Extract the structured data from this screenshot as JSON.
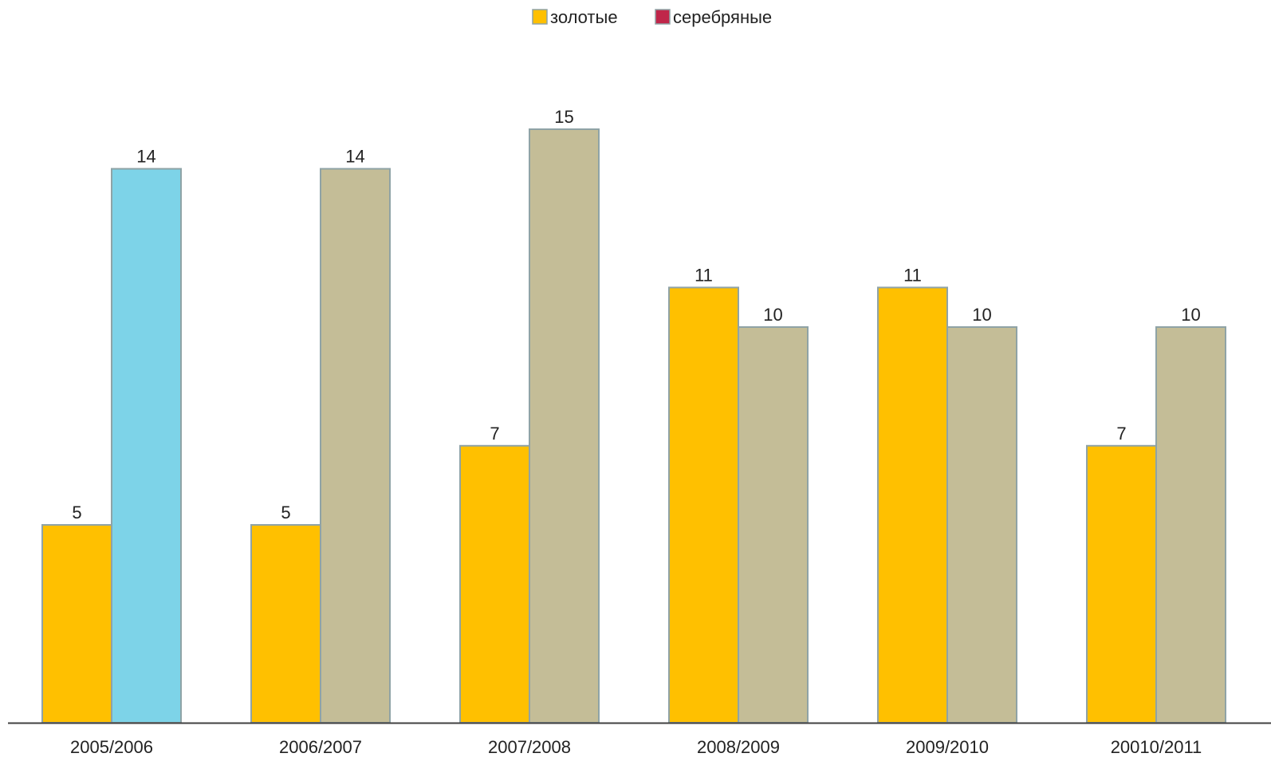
{
  "chart_data": {
    "type": "bar",
    "title": "",
    "xlabel": "",
    "ylabel": "",
    "categories": [
      "2005/2006",
      "2006/2007",
      "2007/2008",
      "2008/2009",
      "2009/2010",
      "20010/2011"
    ],
    "series": [
      {
        "name": "золотые",
        "values": [
          5,
          5,
          7,
          11,
          11,
          7
        ],
        "color": "#FFC000"
      },
      {
        "name": "серебряные",
        "values": [
          14,
          14,
          15,
          10,
          10,
          10
        ],
        "color": "#C4BD97"
      }
    ],
    "legend_swatch_colors": [
      "#FFC000",
      "#C0264A"
    ],
    "highlight": {
      "series": 1,
      "category": 0,
      "color": "#7DD3E8"
    },
    "bar_outline_color": "#8FA3A6",
    "axis_color": "#404040",
    "ylim": [
      0,
      16
    ],
    "grid": false,
    "legend_position": "top-center",
    "show_data_labels": true
  }
}
